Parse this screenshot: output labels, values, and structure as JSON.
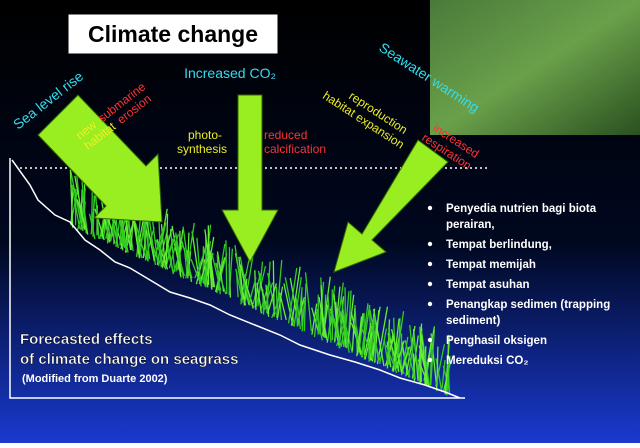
{
  "title": "Climate change",
  "drivers": {
    "sea_level": "Sea level rise",
    "co2": "Increased CO₂",
    "warming": "Seawater warming"
  },
  "effects": {
    "sea_level_positive": [
      "new",
      "habitat"
    ],
    "sea_level_negative": [
      "submarine",
      "erosion"
    ],
    "co2_positive": [
      "photo-",
      "synthesis"
    ],
    "co2_negative": [
      "reduced",
      "calcification"
    ],
    "warming_positive": [
      "reproduction",
      "habitat expansion"
    ],
    "warming_negative": [
      "increased",
      "respiration"
    ]
  },
  "caption": {
    "lines": [
      "Forecasted effects",
      "of climate change on seagrass"
    ],
    "source": "(Modified from Duarte 2002)"
  },
  "functions": [
    "Penyedia nutrien bagi biota",
    "perairan,",
    "Tempat berlindung,",
    "Tempat memijah",
    "Tempat asuhan",
    "Penangkap sedimen (trapping",
    "sediment)",
    "Penghasil oksigen",
    "Mereduksi CO₂"
  ]
}
